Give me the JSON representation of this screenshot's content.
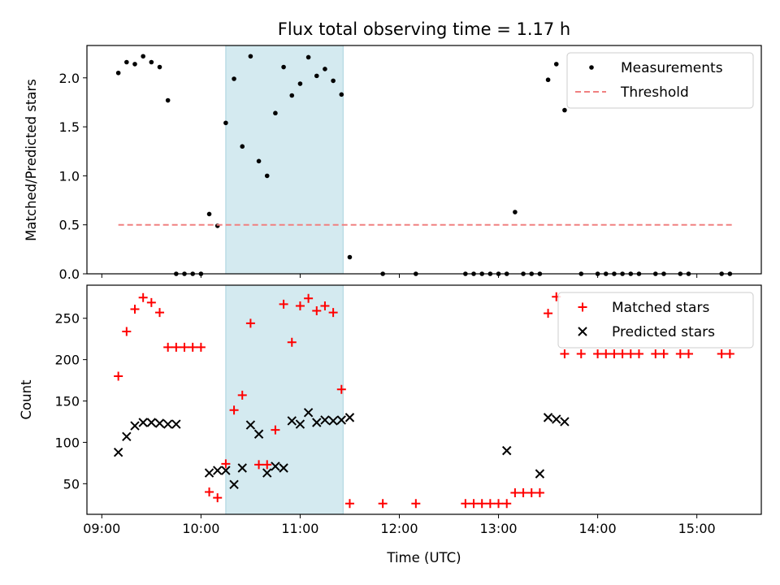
{
  "chart_data": [
    {
      "type": "scatter",
      "title": "Flux total observing time = 1.17 h",
      "xlabel": "",
      "ylabel": "Matched/Predicted stars",
      "xlim": [
        "08:51",
        "15:39"
      ],
      "ylim": [
        0,
        2.33
      ],
      "yticks": [
        "0.0",
        "0.5",
        "1.0",
        "1.5",
        "2.0"
      ],
      "highlight_span": {
        "start": "10:15",
        "end": "11:26",
        "color": "#d4eaf0"
      },
      "legend": {
        "placement": "top-right",
        "entries": [
          "Measurements",
          "Threshold"
        ]
      },
      "series": [
        {
          "name": "Measurements",
          "marker": "dot",
          "color": "#000000",
          "x": [
            "09:10",
            "09:15",
            "09:20",
            "09:25",
            "09:30",
            "09:35",
            "09:40",
            "09:45",
            "09:50",
            "09:55",
            "10:00",
            "10:05",
            "10:10",
            "10:15",
            "10:20",
            "10:25",
            "10:30",
            "10:35",
            "10:40",
            "10:45",
            "10:50",
            "10:55",
            "11:00",
            "11:05",
            "11:10",
            "11:15",
            "11:20",
            "11:25",
            "11:30",
            "11:50",
            "12:10",
            "12:40",
            "12:45",
            "12:50",
            "12:55",
            "13:00",
            "13:05",
            "13:10",
            "13:15",
            "13:20",
            "13:25",
            "13:30",
            "13:35",
            "13:40",
            "13:50",
            "14:00",
            "14:05",
            "14:10",
            "14:15",
            "14:20",
            "14:25",
            "14:35",
            "14:40",
            "14:50",
            "14:55",
            "15:15",
            "15:20"
          ],
          "y": [
            2.05,
            2.16,
            2.14,
            2.22,
            2.16,
            2.11,
            1.77,
            0,
            0,
            0,
            0,
            0.61,
            0.49,
            1.54,
            1.99,
            1.3,
            2.22,
            1.15,
            1.0,
            1.64,
            2.11,
            1.82,
            1.94,
            2.21,
            2.02,
            2.09,
            1.97,
            1.83,
            0.17,
            0,
            0,
            0,
            0,
            0,
            0,
            0,
            0,
            0.63,
            0,
            0,
            0,
            1.98,
            2.14,
            1.67,
            0,
            0,
            0,
            0,
            0,
            0,
            0,
            0,
            0,
            0,
            0,
            0,
            0
          ]
        },
        {
          "name": "Threshold",
          "style": "dashed",
          "color": "#f08080",
          "x": [
            "09:10",
            "15:22"
          ],
          "y": [
            0.5,
            0.5
          ]
        }
      ]
    },
    {
      "type": "scatter",
      "title": "",
      "xlabel": "Time (UTC)",
      "ylabel": "Count",
      "xlim": [
        "08:51",
        "15:39"
      ],
      "ylim": [
        13,
        290
      ],
      "xticks": [
        "09:00",
        "10:00",
        "11:00",
        "12:00",
        "13:00",
        "14:00",
        "15:00"
      ],
      "yticks": [
        "50",
        "100",
        "150",
        "200",
        "250"
      ],
      "highlight_span": {
        "start": "10:15",
        "end": "11:26",
        "color": "#d4eaf0"
      },
      "legend": {
        "placement": "top-right",
        "entries": [
          "Matched stars",
          "Predicted stars"
        ]
      },
      "series": [
        {
          "name": "Matched stars",
          "marker": "+",
          "color": "#ff0000",
          "x": [
            "09:10",
            "09:15",
            "09:20",
            "09:25",
            "09:30",
            "09:35",
            "09:40",
            "09:45",
            "09:50",
            "09:55",
            "10:00",
            "10:05",
            "10:10",
            "10:15",
            "10:20",
            "10:25",
            "10:30",
            "10:35",
            "10:40",
            "10:45",
            "10:50",
            "10:55",
            "11:00",
            "11:05",
            "11:10",
            "11:15",
            "11:20",
            "11:25",
            "11:30",
            "11:50",
            "12:10",
            "12:40",
            "12:45",
            "12:50",
            "12:55",
            "13:00",
            "13:05",
            "13:10",
            "13:15",
            "13:20",
            "13:25",
            "13:30",
            "13:35",
            "13:40",
            "13:50",
            "14:00",
            "14:05",
            "14:10",
            "14:15",
            "14:20",
            "14:25",
            "14:35",
            "14:40",
            "14:50",
            "14:55",
            "15:15",
            "15:20"
          ],
          "y": [
            180,
            234,
            261,
            275,
            269,
            257,
            215,
            215,
            215,
            215,
            215,
            40,
            33,
            74,
            139,
            157,
            244,
            73,
            73,
            115,
            267,
            221,
            265,
            274,
            259,
            265,
            257,
            164,
            26,
            26,
            26,
            26,
            26,
            26,
            26,
            26,
            26,
            39,
            39,
            39,
            39,
            256,
            276,
            207,
            207,
            207,
            207,
            207,
            207,
            207,
            207,
            207,
            207,
            207,
            207,
            207,
            207
          ]
        },
        {
          "name": "Predicted stars",
          "marker": "x",
          "color": "#000000",
          "x": [
            "09:10",
            "09:15",
            "09:20",
            "09:25",
            "09:30",
            "09:35",
            "09:40",
            "09:45",
            "10:05",
            "10:10",
            "10:15",
            "10:20",
            "10:25",
            "10:30",
            "10:35",
            "10:40",
            "10:45",
            "10:50",
            "10:55",
            "11:00",
            "11:05",
            "11:10",
            "11:15",
            "11:20",
            "11:25",
            "11:30",
            "13:05",
            "13:25",
            "13:30",
            "13:35",
            "13:40"
          ],
          "y": [
            88,
            107,
            120,
            124,
            124,
            123,
            122,
            122,
            63,
            66,
            66,
            49,
            69,
            121,
            110,
            63,
            71,
            69,
            126,
            122,
            136,
            124,
            127,
            126,
            127,
            130,
            90,
            62,
            130,
            128,
            125
          ]
        }
      ]
    }
  ]
}
